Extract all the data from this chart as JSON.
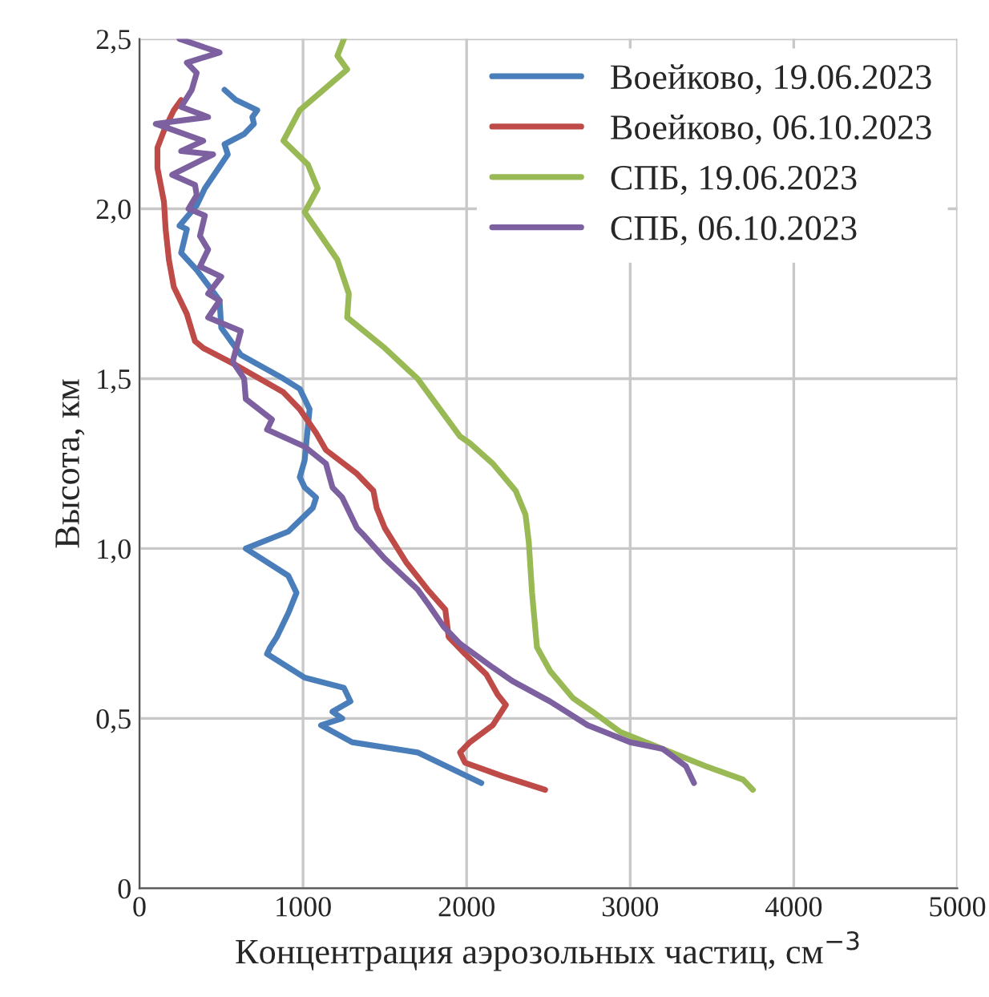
{
  "chart_data": {
    "type": "line",
    "xlabel": "Концентрация аэрозольных частиц, см$^{−3}$",
    "ylabel": "Высота, км",
    "xlim": [
      0,
      5000
    ],
    "xticks": [
      0,
      1000,
      2000,
      3000,
      4000,
      5000
    ],
    "ylim": [
      0,
      2.5
    ],
    "yticks": [
      0,
      {
        "value": 0.5,
        "label": "0,5"
      },
      {
        "value": 1.0,
        "label": "1,0"
      },
      {
        "value": 1.5,
        "label": "1,5"
      },
      {
        "value": 2.0,
        "label": "2,0"
      },
      {
        "value": 2.5,
        "label": "2,5"
      }
    ],
    "grid": true,
    "legend": "top right",
    "line_style": "solid",
    "series": [
      {
        "name": "Воейково, 19.06.2023",
        "color": "#4a7ebb",
        "x": [
          2090,
          1700,
          1300,
          1110,
          1240,
          1180,
          1290,
          1250,
          1010,
          780,
          800,
          840,
          910,
          960,
          940,
          910,
          650,
          910,
          1060,
          1080,
          1010,
          980,
          1010,
          1040,
          980,
          880,
          620,
          500,
          490,
          350,
          255,
          290,
          245,
          350,
          400,
          540,
          520,
          640,
          700,
          690,
          720,
          590,
          520
        ],
        "values": [
          0.31,
          0.4,
          0.43,
          0.48,
          0.5,
          0.52,
          0.55,
          0.59,
          0.62,
          0.69,
          0.71,
          0.74,
          0.81,
          0.87,
          0.89,
          0.92,
          1.0,
          1.05,
          1.12,
          1.15,
          1.18,
          1.21,
          1.26,
          1.41,
          1.47,
          1.5,
          1.57,
          1.65,
          1.73,
          1.82,
          1.87,
          1.94,
          1.95,
          2.01,
          2.06,
          2.16,
          2.19,
          2.22,
          2.25,
          2.27,
          2.29,
          2.32,
          2.35
        ]
      },
      {
        "name": "Воейково, 06.10.2023",
        "color": "#be4b48",
        "x": [
          2480,
          2220,
          1990,
          1960,
          2020,
          2160,
          2240,
          2190,
          2120,
          1990,
          1890,
          1870,
          1760,
          1630,
          1500,
          1450,
          1430,
          1330,
          1140,
          1080,
          980,
          880,
          590,
          390,
          340,
          290,
          210,
          180,
          160,
          150,
          110,
          110,
          150,
          210,
          255
        ],
        "values": [
          0.29,
          0.33,
          0.37,
          0.4,
          0.43,
          0.48,
          0.54,
          0.57,
          0.63,
          0.69,
          0.74,
          0.82,
          0.88,
          0.96,
          1.06,
          1.12,
          1.17,
          1.22,
          1.29,
          1.34,
          1.41,
          1.46,
          1.54,
          1.59,
          1.61,
          1.69,
          1.77,
          1.85,
          1.94,
          2.02,
          2.12,
          2.18,
          2.23,
          2.29,
          2.32
        ]
      },
      {
        "name": "СПБ, 19.06.2023",
        "color": "#98b954",
        "x": [
          3750,
          3690,
          3460,
          3200,
          2940,
          2770,
          2650,
          2510,
          2430,
          2400,
          2380,
          2360,
          2300,
          2160,
          2020,
          1960,
          1700,
          1500,
          1270,
          1280,
          1210,
          1110,
          1010,
          1090,
          1030,
          880,
          980,
          1270,
          1210,
          1250
        ],
        "values": [
          0.29,
          0.32,
          0.36,
          0.41,
          0.46,
          0.52,
          0.56,
          0.64,
          0.71,
          0.87,
          1.02,
          1.1,
          1.17,
          1.25,
          1.31,
          1.33,
          1.5,
          1.59,
          1.68,
          1.75,
          1.85,
          1.92,
          1.99,
          2.06,
          2.13,
          2.2,
          2.29,
          2.41,
          2.45,
          2.5
        ]
      },
      {
        "name": "СПБ, 06.10.2023",
        "color": "#7d60a0",
        "x": [
          3390,
          3340,
          3200,
          3000,
          2740,
          2510,
          2280,
          2160,
          1960,
          1860,
          1760,
          1700,
          1500,
          1370,
          1330,
          1240,
          1180,
          1140,
          1010,
          780,
          810,
          650,
          640,
          570,
          620,
          420,
          490,
          420,
          500,
          370,
          420,
          370,
          400,
          300,
          350,
          340,
          200,
          450,
          255,
          390,
          100,
          420,
          255,
          320,
          350,
          290,
          490,
          245
        ],
        "values": [
          0.31,
          0.36,
          0.41,
          0.43,
          0.48,
          0.55,
          0.61,
          0.65,
          0.72,
          0.77,
          0.84,
          0.88,
          0.97,
          1.04,
          1.06,
          1.15,
          1.18,
          1.25,
          1.3,
          1.35,
          1.38,
          1.44,
          1.5,
          1.55,
          1.64,
          1.68,
          1.73,
          1.75,
          1.8,
          1.83,
          1.88,
          1.92,
          1.98,
          2.0,
          2.04,
          2.07,
          2.1,
          2.16,
          2.17,
          2.2,
          2.25,
          2.27,
          2.3,
          2.35,
          2.4,
          2.43,
          2.46,
          2.5
        ]
      }
    ]
  }
}
